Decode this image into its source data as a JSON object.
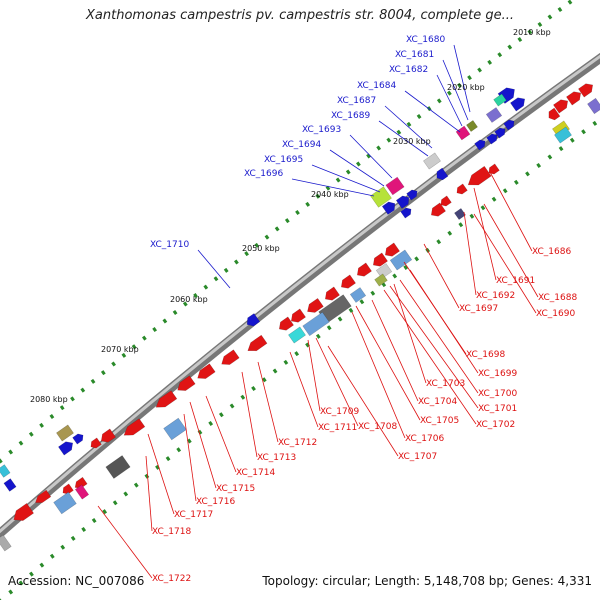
{
  "title": "Xanthomonas campestris pv. campestris str. 8004, complete ge...",
  "footer": {
    "accession": "Accession: NC_007086",
    "summary": "Topology: circular; Length: 5,148,708 bp; Genes: 4,331"
  },
  "colors": {
    "forward_label": "#1a1acc",
    "reverse_label": "#dd1111",
    "backbone": "#888888",
    "tick": "#2a8a2a"
  },
  "kbp_ticks": [
    "2010 kbp",
    "2020 kbp",
    "2030 kbp",
    "2040 kbp",
    "2050 kbp",
    "2060 kbp",
    "2070 kbp",
    "2080 kbp"
  ],
  "forward_genes": [
    "XC_1680",
    "XC_1681",
    "XC_1682",
    "XC_1684",
    "XC_1687",
    "XC_1689",
    "XC_1693",
    "XC_1694",
    "XC_1695",
    "XC_1696",
    "XC_1710"
  ],
  "reverse_genes": [
    "XC_1686",
    "XC_1691",
    "XC_1688",
    "XC_1692",
    "XC_1690",
    "XC_1697",
    "XC_1698",
    "XC_1699",
    "XC_1700",
    "XC_1703",
    "XC_1701",
    "XC_1704",
    "XC_1702",
    "XC_1705",
    "XC_1706",
    "XC_1709",
    "XC_1708",
    "XC_1707",
    "XC_1711",
    "XC_1712",
    "XC_1713",
    "XC_1714",
    "XC_1715",
    "XC_1716",
    "XC_1717",
    "XC_1718",
    "XC_1722"
  ]
}
